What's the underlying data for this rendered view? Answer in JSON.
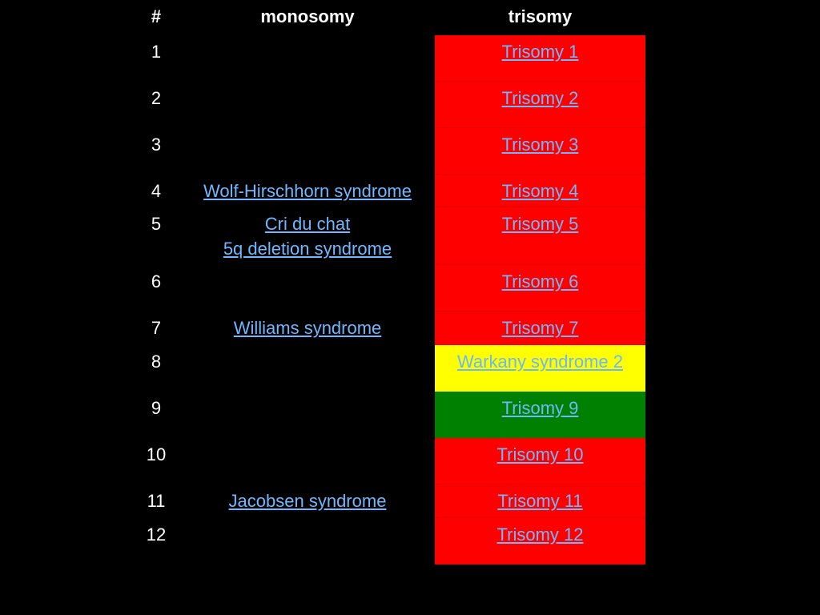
{
  "header": {
    "num": "#",
    "monosomy": "monosomy",
    "trisomy": "trisomy"
  },
  "colors": {
    "background": "#000000",
    "trisomy_red": "#ff0000",
    "trisomy_yellow": "#ffff00",
    "trisomy_green": "#008000",
    "link": "#6fb8ff"
  },
  "rows": [
    {
      "num": "1",
      "monosomy": [],
      "trisomy": "Trisomy 1",
      "color": "red"
    },
    {
      "num": "2",
      "monosomy": [],
      "trisomy": "Trisomy 2",
      "color": "red"
    },
    {
      "num": "3",
      "monosomy": [],
      "trisomy": "Trisomy 3",
      "color": "red"
    },
    {
      "num": "4",
      "monosomy": [
        "Wolf-Hirschhorn syndrome"
      ],
      "trisomy": "Trisomy 4",
      "color": "red"
    },
    {
      "num": "5",
      "monosomy": [
        "Cri du chat",
        "5q deletion syndrome"
      ],
      "trisomy": "Trisomy 5",
      "color": "red"
    },
    {
      "num": "6",
      "monosomy": [],
      "trisomy": "Trisomy 6",
      "color": "red"
    },
    {
      "num": "7",
      "monosomy": [
        "Williams syndrome"
      ],
      "trisomy": "Trisomy 7",
      "color": "red"
    },
    {
      "num": "8",
      "monosomy": [],
      "trisomy": "Warkany syndrome 2",
      "color": "yellow"
    },
    {
      "num": "9",
      "monosomy": [],
      "trisomy": "Trisomy 9",
      "color": "green"
    },
    {
      "num": "10",
      "monosomy": [],
      "trisomy": "Trisomy 10",
      "color": "red"
    },
    {
      "num": "11",
      "monosomy": [
        "Jacobsen syndrome"
      ],
      "trisomy": "Trisomy 11",
      "color": "red"
    },
    {
      "num": "12",
      "monosomy": [],
      "trisomy": "Trisomy 12",
      "color": "red"
    }
  ]
}
